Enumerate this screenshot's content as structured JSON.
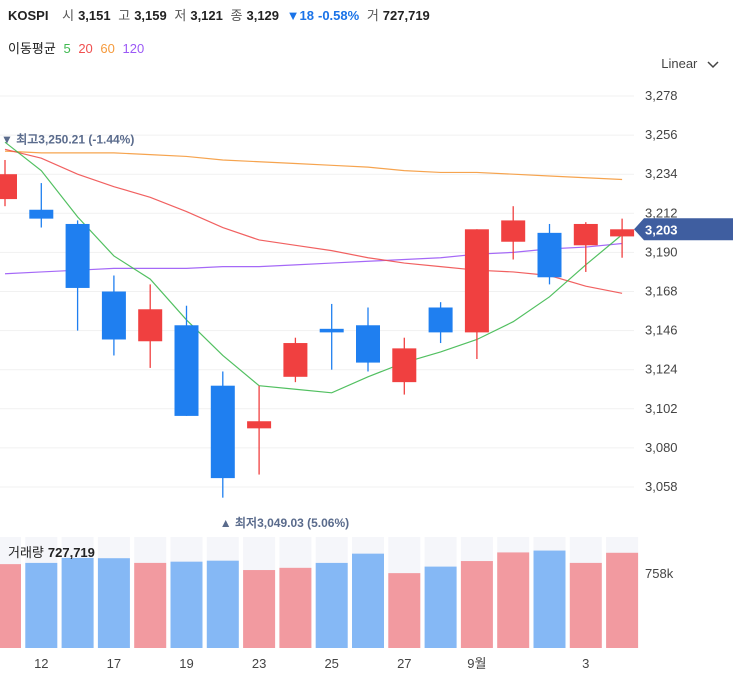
{
  "header": {
    "symbol": "KOSPI",
    "open_label": "시",
    "open": "3,151",
    "high_label": "고",
    "high": "3,159",
    "low_label": "저",
    "low": "3,121",
    "close_label": "종",
    "close": "3,129",
    "change": "▼18",
    "change_pct": "-0.58%",
    "volume_label": "거",
    "volume": "727,719"
  },
  "ma_legend": {
    "title": "이동평균",
    "items": [
      {
        "label": "5",
        "color": "#3fb950"
      },
      {
        "label": "20",
        "color": "#f05050"
      },
      {
        "label": "60",
        "color": "#f59a3c"
      },
      {
        "label": "120",
        "color": "#9b59f6"
      }
    ]
  },
  "scale_mode": "Linear",
  "colors": {
    "up": "#f04040",
    "down": "#1f7ff0",
    "up_vol": "#f29aa0",
    "down_vol": "#85b8f5",
    "price_tag": "#3f5ea0"
  },
  "volume_panel": {
    "label": "거래량",
    "value": "727,719",
    "axis_tick": "758k"
  },
  "chart_data": {
    "type": "candlestick",
    "y_ticks": [
      "3,278",
      "3,256",
      "3,234",
      "3,212",
      "3,190",
      "3,168",
      "3,146",
      "3,124",
      "3,102",
      "3,080",
      "3,058"
    ],
    "ylim": [
      3040,
      3290
    ],
    "x_ticks": [
      {
        "index": 1,
        "label": "12"
      },
      {
        "index": 3,
        "label": "17"
      },
      {
        "index": 5,
        "label": "19"
      },
      {
        "index": 7,
        "label": "23"
      },
      {
        "index": 9,
        "label": "25"
      },
      {
        "index": 11,
        "label": "27"
      },
      {
        "index": 13,
        "label": "9월"
      },
      {
        "index": 16,
        "label": "3"
      }
    ],
    "candles": [
      {
        "o": 3220,
        "h": 3242,
        "l": 3216,
        "c": 3234
      },
      {
        "o": 3214,
        "h": 3229,
        "l": 3204,
        "c": 3209
      },
      {
        "o": 3206,
        "h": 3208,
        "l": 3146,
        "c": 3170
      },
      {
        "o": 3168,
        "h": 3177,
        "l": 3132,
        "c": 3141
      },
      {
        "o": 3140,
        "h": 3172,
        "l": 3125,
        "c": 3158
      },
      {
        "o": 3149,
        "h": 3160,
        "l": 3098,
        "c": 3098
      },
      {
        "o": 3115,
        "h": 3123,
        "l": 3052,
        "c": 3063
      },
      {
        "o": 3091,
        "h": 3115,
        "l": 3065,
        "c": 3095
      },
      {
        "o": 3120,
        "h": 3142,
        "l": 3117,
        "c": 3139
      },
      {
        "o": 3147,
        "h": 3161,
        "l": 3124,
        "c": 3145
      },
      {
        "o": 3149,
        "h": 3159,
        "l": 3123,
        "c": 3128
      },
      {
        "o": 3117,
        "h": 3142,
        "l": 3110,
        "c": 3136
      },
      {
        "o": 3159,
        "h": 3162,
        "l": 3139,
        "c": 3145
      },
      {
        "o": 3145,
        "h": 3203,
        "l": 3130,
        "c": 3203
      },
      {
        "o": 3196,
        "h": 3216,
        "l": 3186,
        "c": 3208
      },
      {
        "o": 3201,
        "h": 3206,
        "l": 3172,
        "c": 3176
      },
      {
        "o": 3194,
        "h": 3207,
        "l": 3179,
        "c": 3206
      },
      {
        "o": 3199,
        "h": 3209,
        "l": 3187,
        "c": 3203
      }
    ],
    "ma": {
      "5": [
        3252,
        3236,
        3210,
        3188,
        3175,
        3152,
        3132,
        3115,
        3113,
        3111,
        3120,
        3128,
        3134,
        3141,
        3151,
        3165,
        3183,
        3200
      ],
      "20": [
        3248,
        3243,
        3234,
        3227,
        3221,
        3213,
        3204,
        3197,
        3194,
        3191,
        3187,
        3184,
        3182,
        3180,
        3179,
        3177,
        3171,
        3167
      ],
      "60": [
        3247,
        3246,
        3246,
        3246,
        3245,
        3244,
        3242,
        3241,
        3240,
        3239,
        3238,
        3236,
        3235,
        3235,
        3234,
        3233,
        3232,
        3231
      ],
      "120": [
        3178,
        3179,
        3180,
        3181,
        3181,
        3181,
        3182,
        3182,
        3183,
        3184,
        3185,
        3186,
        3187,
        3189,
        3190,
        3192,
        3193,
        3195
      ]
    },
    "volumes": [
      680,
      690,
      730,
      728,
      690,
      700,
      708,
      632,
      650,
      690,
      765,
      607,
      660,
      705,
      775,
      790,
      690,
      772
    ],
    "current_price": "3,203",
    "high_annotation": "최고3,250.21 (-1.44%)",
    "low_annotation": "최저3,049.03 (5.06%)"
  }
}
